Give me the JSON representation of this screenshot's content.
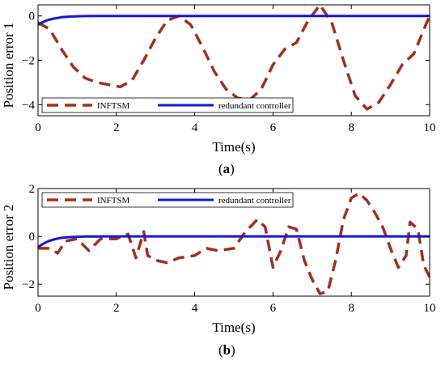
{
  "chart_data": [
    {
      "type": "line",
      "panel": "a",
      "caption_open": "(",
      "caption_letter": "a",
      "caption_close": ")",
      "title": "",
      "xlabel": "Time(s)",
      "ylabel": "Position error 1",
      "xlim": [
        0,
        10
      ],
      "ylim": [
        -4.5,
        0.5
      ],
      "xticks": [
        0,
        2,
        4,
        6,
        8,
        10
      ],
      "xtick_labels": [
        "0",
        "2",
        "4",
        "6",
        "8",
        "10"
      ],
      "yticks": [
        -4,
        -2,
        0
      ],
      "ytick_labels": [
        "−4",
        "−2",
        "0"
      ],
      "grid": false,
      "legend_placement": "bottom-left",
      "series": [
        {
          "name": "INFTSM",
          "color": "#a0301c",
          "style": "dashed",
          "x": [
            0.0,
            0.3,
            0.6,
            0.9,
            1.2,
            1.5,
            1.8,
            2.1,
            2.4,
            2.7,
            3.0,
            3.3,
            3.6,
            3.9,
            4.2,
            4.5,
            4.8,
            5.1,
            5.4,
            5.7,
            6.0,
            6.3,
            6.6,
            6.9,
            7.2,
            7.5,
            7.8,
            8.1,
            8.4,
            8.7,
            9.0,
            9.3,
            9.6,
            9.9,
            10.0
          ],
          "y": [
            -0.3,
            -0.6,
            -1.5,
            -2.3,
            -2.8,
            -3.0,
            -3.1,
            -3.2,
            -2.9,
            -2.0,
            -1.0,
            -0.2,
            0.0,
            -0.4,
            -1.4,
            -2.5,
            -3.3,
            -3.7,
            -3.8,
            -3.3,
            -2.2,
            -1.5,
            -1.2,
            -0.2,
            0.5,
            -0.3,
            -2.0,
            -3.6,
            -4.2,
            -3.9,
            -3.1,
            -2.2,
            -1.7,
            -0.4,
            0.0
          ]
        },
        {
          "name": "redundant controller",
          "color": "#1515d6",
          "style": "solid",
          "x": [
            0.0,
            0.1,
            0.2,
            0.3,
            0.4,
            0.5,
            0.6,
            0.8,
            1.0,
            1.2,
            1.5,
            2.0,
            3.0,
            5.0,
            7.5,
            10.0
          ],
          "y": [
            -0.4,
            -0.3,
            -0.22,
            -0.16,
            -0.12,
            -0.09,
            -0.06,
            -0.03,
            -0.015,
            -0.007,
            -0.003,
            0.0,
            0.0,
            0.0,
            0.0,
            0.0
          ]
        }
      ]
    },
    {
      "type": "line",
      "panel": "b",
      "caption_open": "(",
      "caption_letter": "b",
      "caption_close": ")",
      "title": "",
      "xlabel": "Time(s)",
      "ylabel": "Position error 2",
      "xlim": [
        0,
        10
      ],
      "ylim": [
        -2.5,
        2.0
      ],
      "xticks": [
        0,
        2,
        4,
        6,
        8,
        10
      ],
      "xtick_labels": [
        "0",
        "2",
        "4",
        "6",
        "8",
        "10"
      ],
      "yticks": [
        -2,
        0,
        2
      ],
      "ytick_labels": [
        "−2",
        "0",
        "2"
      ],
      "grid": false,
      "legend_placement": "top-left",
      "series": [
        {
          "name": "INFTSM",
          "color": "#a0301c",
          "style": "dashed",
          "x": [
            0.0,
            0.3,
            0.5,
            0.7,
            1.0,
            1.3,
            1.6,
            2.0,
            2.3,
            2.5,
            2.7,
            2.8,
            3.0,
            3.3,
            3.6,
            4.0,
            4.3,
            4.6,
            5.0,
            5.3,
            5.6,
            5.8,
            6.0,
            6.2,
            6.4,
            6.6,
            6.8,
            7.0,
            7.2,
            7.4,
            7.6,
            7.8,
            8.0,
            8.2,
            8.4,
            8.6,
            8.8,
            9.0,
            9.2,
            9.4,
            9.5,
            9.7,
            9.85,
            10.0
          ],
          "y": [
            -0.5,
            -0.5,
            -0.7,
            -0.2,
            -0.1,
            -0.6,
            -0.1,
            -0.1,
            0.1,
            -0.9,
            0.2,
            -0.8,
            -1.0,
            -1.1,
            -0.9,
            -0.8,
            -0.5,
            -0.6,
            -0.5,
            0.2,
            0.7,
            0.4,
            -1.3,
            -0.6,
            0.4,
            0.3,
            -1.0,
            -1.8,
            -2.4,
            -2.3,
            -1.0,
            0.7,
            1.6,
            1.8,
            1.5,
            1.0,
            0.4,
            -0.5,
            -1.3,
            -0.8,
            0.6,
            0.3,
            -1.2,
            -1.7
          ]
        },
        {
          "name": "redundant controller",
          "color": "#1515d6",
          "style": "solid",
          "x": [
            0.0,
            0.1,
            0.2,
            0.3,
            0.4,
            0.5,
            0.6,
            0.8,
            1.0,
            1.2,
            1.5,
            2.0,
            3.0,
            5.0,
            7.5,
            10.0
          ],
          "y": [
            -0.45,
            -0.34,
            -0.25,
            -0.18,
            -0.13,
            -0.09,
            -0.06,
            -0.03,
            -0.015,
            -0.007,
            -0.003,
            0.0,
            0.0,
            0.0,
            0.0,
            0.0
          ]
        }
      ]
    }
  ]
}
